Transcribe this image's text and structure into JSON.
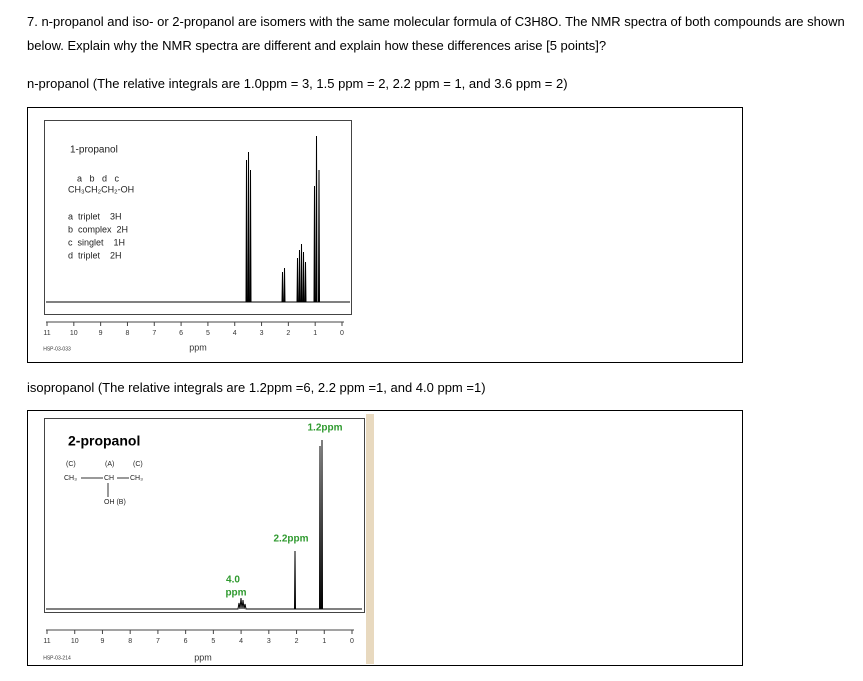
{
  "question": {
    "line1": "7.  n-propanol and iso- or 2-propanol are isomers with the same molecular formula of C3H8O. The NMR spectra of both compounds are shown",
    "line2": "below.  Explain why the NMR spectra are different and explain how these differences arise [5 points]?"
  },
  "npropanol": {
    "caption": "n-propanol (The relative integrals are 1.0ppm = 3, 1.5 ppm = 2, 2.2 ppm = 1, and 3.6 ppm = 2)",
    "spectrum": {
      "title": "1-propanol",
      "letters": "a   b   d   c",
      "formula": "CH₃CH₂CH₂-OH",
      "assignments": [
        "a  triplet    3H",
        "b  complex  2H",
        "c  singlet    1H",
        "d  triplet    2H"
      ],
      "ticks": [
        "11",
        "10",
        "9",
        "8",
        "7",
        "6",
        "5",
        "4",
        "3",
        "2",
        "1",
        "0"
      ],
      "code": "HSP-03-033",
      "unit": "ppm"
    }
  },
  "isopropanol": {
    "caption": "isopropanol (The relative integrals are 1.2ppm =6, 2.2 ppm =1, and 4.0 ppm =1)",
    "spectrum": {
      "title": "2-propanol",
      "groups": [
        "(C)",
        "(A)",
        "(C)"
      ],
      "formula": [
        "CH₃",
        "CH",
        "CH₃"
      ],
      "oh": "OH (B)",
      "peak_labels": [
        "1.2ppm",
        "2.2ppm",
        "4.0",
        "ppm"
      ],
      "ticks": [
        "11",
        "10",
        "9",
        "8",
        "7",
        "6",
        "5",
        "4",
        "3",
        "2",
        "1",
        "0"
      ],
      "code": "HSP-03-214",
      "unit": "ppm"
    }
  }
}
